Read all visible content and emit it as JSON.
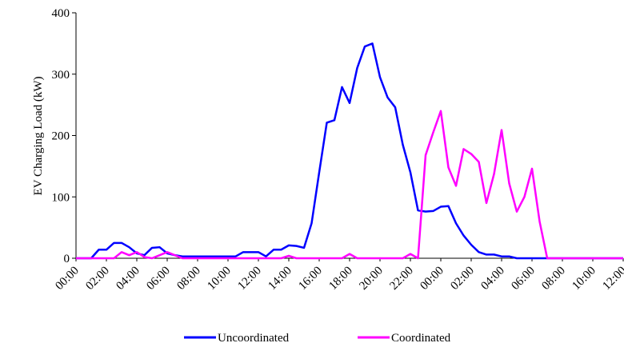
{
  "chart_data": {
    "type": "line",
    "y_label": "EV Charging Load (kW)",
    "categories": [
      "00:00",
      null,
      null,
      null,
      "02:00",
      null,
      null,
      null,
      "04:00",
      null,
      null,
      null,
      "06:00",
      null,
      null,
      null,
      "08:00",
      null,
      null,
      null,
      "10:00",
      null,
      null,
      null,
      "12:00",
      null,
      null,
      null,
      "14:00",
      null,
      null,
      null,
      "16:00",
      null,
      null,
      null,
      "18:00",
      null,
      null,
      null,
      "20:00",
      null,
      null,
      null,
      "22:00",
      null,
      null,
      null,
      "00:00",
      null,
      null,
      null,
      "02:00",
      null,
      null,
      null,
      "04:00",
      null,
      null,
      null,
      "06:00",
      null,
      null,
      null,
      "08:00",
      null,
      null,
      null,
      "10:00",
      null,
      null,
      null,
      "12:00"
    ],
    "series": [
      {
        "name": "Uncoordinated",
        "color": "#0000ff",
        "values": [
          0,
          0,
          0,
          14,
          14,
          25,
          25,
          18,
          8,
          5,
          17,
          18,
          8,
          5,
          3,
          3,
          3,
          3,
          3,
          3,
          3,
          3,
          10,
          10,
          10,
          3,
          14,
          14,
          21,
          20,
          17,
          57,
          140,
          221,
          225,
          279,
          253,
          310,
          345,
          350,
          295,
          262,
          246,
          185,
          140,
          78,
          76,
          77,
          84,
          85,
          57,
          37,
          22,
          10,
          6,
          6,
          3,
          3,
          0,
          0,
          0,
          0,
          0,
          0,
          0,
          0,
          0,
          0,
          0,
          0,
          0,
          0,
          0
        ]
      },
      {
        "name": "Coordinated",
        "color": "#ff00ff",
        "values": [
          0,
          0,
          0,
          0,
          0,
          0,
          10,
          5,
          10,
          2,
          0,
          5,
          10,
          5,
          0,
          0,
          0,
          0,
          0,
          0,
          0,
          0,
          0,
          0,
          0,
          0,
          0,
          0,
          4,
          0,
          0,
          0,
          0,
          0,
          0,
          0,
          7,
          0,
          0,
          0,
          0,
          0,
          0,
          0,
          7,
          0,
          168,
          205,
          240,
          148,
          118,
          178,
          170,
          157,
          90,
          137,
          209,
          122,
          76,
          100,
          146,
          60,
          0,
          0,
          0,
          0,
          0,
          0,
          0,
          0,
          0,
          0,
          0
        ]
      }
    ],
    "ylim": [
      0,
      400
    ],
    "yticks": [
      0,
      100,
      200,
      300,
      400
    ],
    "legend": "bottom"
  }
}
